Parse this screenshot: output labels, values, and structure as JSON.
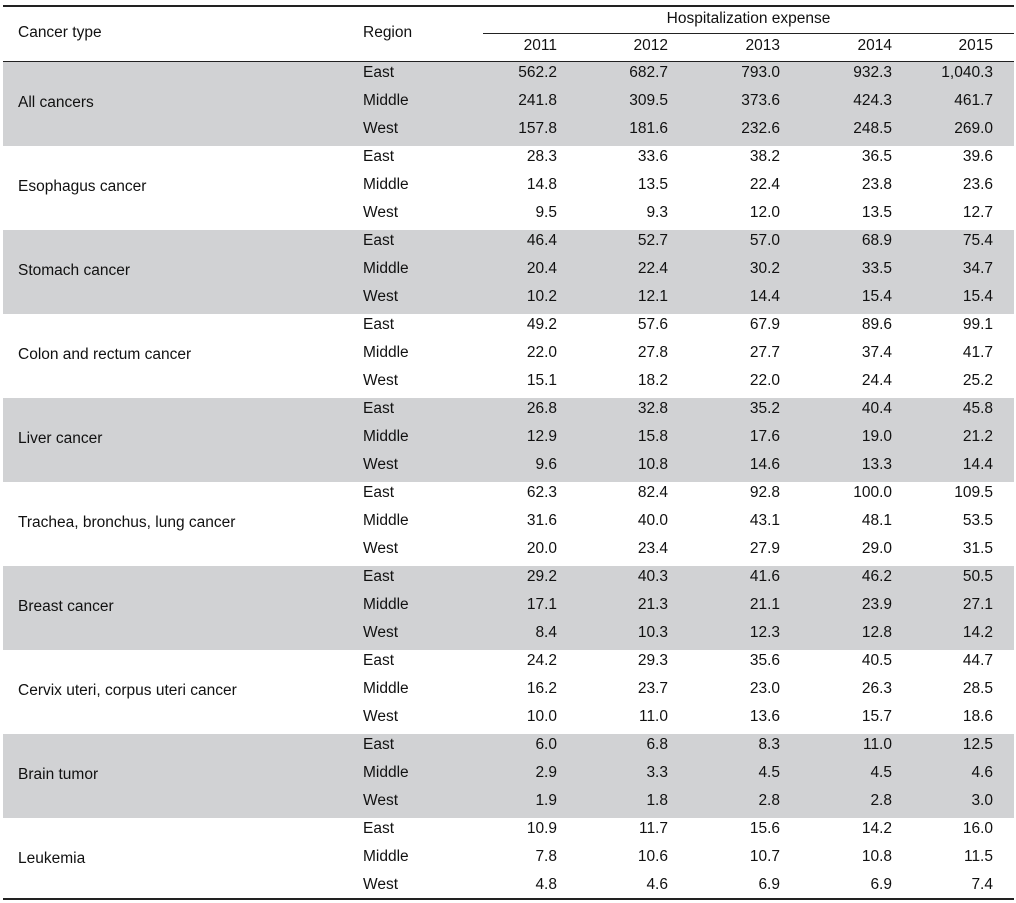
{
  "header": {
    "cancer_type_label": "Cancer type",
    "region_label": "Region",
    "span_label": "Hospitalization expense",
    "years": [
      "2011",
      "2012",
      "2013",
      "2014",
      "2015"
    ]
  },
  "colors": {
    "band": "#d1d2d4",
    "rule": "#222222"
  },
  "rows": [
    {
      "cancer": "All cancers",
      "regions": [
        {
          "name": "East",
          "values": [
            "562.2",
            "682.7",
            "793.0",
            "932.3",
            "1,040.3"
          ]
        },
        {
          "name": "Middle",
          "values": [
            "241.8",
            "309.5",
            "373.6",
            "424.3",
            "461.7"
          ]
        },
        {
          "name": "West",
          "values": [
            "157.8",
            "181.6",
            "232.6",
            "248.5",
            "269.0"
          ]
        }
      ]
    },
    {
      "cancer": "Esophagus cancer",
      "regions": [
        {
          "name": "East",
          "values": [
            "28.3",
            "33.6",
            "38.2",
            "36.5",
            "39.6"
          ]
        },
        {
          "name": "Middle",
          "values": [
            "14.8",
            "13.5",
            "22.4",
            "23.8",
            "23.6"
          ]
        },
        {
          "name": "West",
          "values": [
            "9.5",
            "9.3",
            "12.0",
            "13.5",
            "12.7"
          ]
        }
      ]
    },
    {
      "cancer": "Stomach cancer",
      "regions": [
        {
          "name": "East",
          "values": [
            "46.4",
            "52.7",
            "57.0",
            "68.9",
            "75.4"
          ]
        },
        {
          "name": "Middle",
          "values": [
            "20.4",
            "22.4",
            "30.2",
            "33.5",
            "34.7"
          ]
        },
        {
          "name": "West",
          "values": [
            "10.2",
            "12.1",
            "14.4",
            "15.4",
            "15.4"
          ]
        }
      ]
    },
    {
      "cancer": "Colon and rectum cancer",
      "regions": [
        {
          "name": "East",
          "values": [
            "49.2",
            "57.6",
            "67.9",
            "89.6",
            "99.1"
          ]
        },
        {
          "name": "Middle",
          "values": [
            "22.0",
            "27.8",
            "27.7",
            "37.4",
            "41.7"
          ]
        },
        {
          "name": "West",
          "values": [
            "15.1",
            "18.2",
            "22.0",
            "24.4",
            "25.2"
          ]
        }
      ]
    },
    {
      "cancer": "Liver cancer",
      "regions": [
        {
          "name": "East",
          "values": [
            "26.8",
            "32.8",
            "35.2",
            "40.4",
            "45.8"
          ]
        },
        {
          "name": "Middle",
          "values": [
            "12.9",
            "15.8",
            "17.6",
            "19.0",
            "21.2"
          ]
        },
        {
          "name": "West",
          "values": [
            "9.6",
            "10.8",
            "14.6",
            "13.3",
            "14.4"
          ]
        }
      ]
    },
    {
      "cancer": "Trachea, bronchus, lung cancer",
      "regions": [
        {
          "name": "East",
          "values": [
            "62.3",
            "82.4",
            "92.8",
            "100.0",
            "109.5"
          ]
        },
        {
          "name": "Middle",
          "values": [
            "31.6",
            "40.0",
            "43.1",
            "48.1",
            "53.5"
          ]
        },
        {
          "name": "West",
          "values": [
            "20.0",
            "23.4",
            "27.9",
            "29.0",
            "31.5"
          ]
        }
      ]
    },
    {
      "cancer": "Breast cancer",
      "regions": [
        {
          "name": "East",
          "values": [
            "29.2",
            "40.3",
            "41.6",
            "46.2",
            "50.5"
          ]
        },
        {
          "name": "Middle",
          "values": [
            "17.1",
            "21.3",
            "21.1",
            "23.9",
            "27.1"
          ]
        },
        {
          "name": "West",
          "values": [
            "8.4",
            "10.3",
            "12.3",
            "12.8",
            "14.2"
          ]
        }
      ]
    },
    {
      "cancer": "Cervix uteri, corpus uteri cancer",
      "regions": [
        {
          "name": "East",
          "values": [
            "24.2",
            "29.3",
            "35.6",
            "40.5",
            "44.7"
          ]
        },
        {
          "name": "Middle",
          "values": [
            "16.2",
            "23.7",
            "23.0",
            "26.3",
            "28.5"
          ]
        },
        {
          "name": "West",
          "values": [
            "10.0",
            "11.0",
            "13.6",
            "15.7",
            "18.6"
          ]
        }
      ]
    },
    {
      "cancer": "Brain tumor",
      "regions": [
        {
          "name": "East",
          "values": [
            "6.0",
            "6.8",
            "8.3",
            "11.0",
            "12.5"
          ]
        },
        {
          "name": "Middle",
          "values": [
            "2.9",
            "3.3",
            "4.5",
            "4.5",
            "4.6"
          ]
        },
        {
          "name": "West",
          "values": [
            "1.9",
            "1.8",
            "2.8",
            "2.8",
            "3.0"
          ]
        }
      ]
    },
    {
      "cancer": "Leukemia",
      "regions": [
        {
          "name": "East",
          "values": [
            "10.9",
            "11.7",
            "15.6",
            "14.2",
            "16.0"
          ]
        },
        {
          "name": "Middle",
          "values": [
            "7.8",
            "10.6",
            "10.7",
            "10.8",
            "11.5"
          ]
        },
        {
          "name": "West",
          "values": [
            "4.8",
            "4.6",
            "6.9",
            "6.9",
            "7.4"
          ]
        }
      ]
    }
  ]
}
